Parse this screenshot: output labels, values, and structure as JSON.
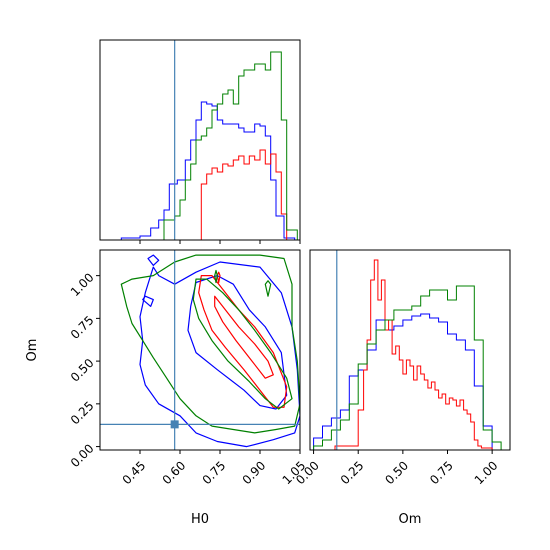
{
  "chart_data": {
    "type": "corner",
    "params": [
      "H0",
      "Om"
    ],
    "truths": {
      "H0": 0.58,
      "Om": 0.13
    },
    "truth_color": "#4682b4",
    "series": [
      {
        "color": "#0000ff"
      },
      {
        "color": "#ff0000"
      },
      {
        "color": "#008000"
      }
    ],
    "panels": [
      {
        "id": "hist-h0",
        "kind": "histogram",
        "param": "H0",
        "xlim": [
          0.3,
          1.05
        ],
        "ylim": [
          0,
          1.0
        ],
        "xticks": [
          0.45,
          0.6,
          0.75,
          0.9,
          1.05
        ],
        "xtick_labels_shown": false,
        "yticks": [],
        "truth": 0.58,
        "series": [
          {
            "color": "#0000ff",
            "edges": [
              0.38,
              0.45,
              0.49,
              0.52,
              0.54,
              0.56,
              0.59,
              0.62,
              0.64,
              0.66,
              0.68,
              0.7,
              0.72,
              0.74,
              0.76,
              0.78,
              0.8,
              0.82,
              0.84,
              0.86,
              0.88,
              0.9,
              0.92,
              0.94,
              0.96,
              0.99,
              1.03
            ],
            "counts": [
              0.01,
              0.02,
              0.06,
              0.1,
              0.15,
              0.28,
              0.3,
              0.4,
              0.5,
              0.6,
              0.69,
              0.68,
              0.67,
              0.6,
              0.58,
              0.58,
              0.58,
              0.56,
              0.54,
              0.54,
              0.58,
              0.57,
              0.52,
              0.3,
              0.12,
              0.01
            ]
          },
          {
            "color": "#ff0000",
            "edges": [
              0.68,
              0.7,
              0.72,
              0.74,
              0.76,
              0.78,
              0.8,
              0.82,
              0.84,
              0.86,
              0.88,
              0.9,
              0.92,
              0.94,
              0.96,
              0.98,
              1.0
            ],
            "counts": [
              0.28,
              0.33,
              0.36,
              0.34,
              0.38,
              0.37,
              0.4,
              0.42,
              0.38,
              0.42,
              0.4,
              0.45,
              0.38,
              0.43,
              0.34,
              0.13
            ]
          },
          {
            "color": "#008000",
            "edges": [
              0.54,
              0.58,
              0.6,
              0.62,
              0.64,
              0.66,
              0.68,
              0.7,
              0.72,
              0.74,
              0.76,
              0.78,
              0.8,
              0.82,
              0.84,
              0.86,
              0.88,
              0.9,
              0.92,
              0.94,
              0.96,
              0.98,
              1.0,
              1.04
            ],
            "counts": [
              0.1,
              0.12,
              0.2,
              0.3,
              0.38,
              0.5,
              0.52,
              0.56,
              0.65,
              0.68,
              0.73,
              0.75,
              0.68,
              0.82,
              0.85,
              0.85,
              0.88,
              0.88,
              0.85,
              0.94,
              0.94,
              0.6,
              0.05
            ]
          }
        ]
      },
      {
        "id": "contour-h0-om",
        "kind": "contour",
        "xparam": "H0",
        "yparam": "Om",
        "xlim": [
          0.3,
          1.05
        ],
        "ylim": [
          -0.02,
          1.15
        ],
        "xticks": [
          0.45,
          0.6,
          0.75,
          0.9,
          1.05
        ],
        "xtick_labels": [
          "0.45",
          "0.60",
          "0.75",
          "0.90",
          "1.05"
        ],
        "yticks": [
          0.0,
          0.25,
          0.5,
          0.75,
          1.0
        ],
        "ytick_labels": [
          "0.00",
          "0.25",
          "0.50",
          "0.75",
          "1.00"
        ],
        "xlabel": "H0",
        "ylabel": "Om",
        "truth": [
          0.58,
          0.13
        ],
        "contours": [
          {
            "color": "#0000ff",
            "points": [
              [
                0.5,
                1.05
              ],
              [
                0.52,
                1.0
              ],
              [
                0.58,
                0.95
              ],
              [
                0.66,
                1.02
              ],
              [
                0.75,
                1.08
              ],
              [
                0.9,
                1.05
              ],
              [
                0.98,
                0.9
              ],
              [
                1.02,
                0.7
              ],
              [
                1.04,
                0.45
              ],
              [
                1.05,
                0.18
              ],
              [
                1.03,
                0.08
              ],
              [
                0.95,
                0.04
              ],
              [
                0.85,
                0.0
              ],
              [
                0.74,
                0.03
              ],
              [
                0.66,
                0.08
              ],
              [
                0.6,
                0.18
              ],
              [
                0.52,
                0.25
              ],
              [
                0.47,
                0.36
              ],
              [
                0.45,
                0.48
              ],
              [
                0.46,
                0.62
              ],
              [
                0.45,
                0.76
              ],
              [
                0.47,
                0.9
              ],
              [
                0.5,
                1.05
              ]
            ]
          },
          {
            "color": "#0000ff",
            "points": [
              [
                0.66,
                0.96
              ],
              [
                0.74,
                1.0
              ],
              [
                0.8,
                0.95
              ],
              [
                0.86,
                0.8
              ],
              [
                0.92,
                0.7
              ],
              [
                0.98,
                0.55
              ],
              [
                1.0,
                0.3
              ],
              [
                0.96,
                0.22
              ],
              [
                0.9,
                0.24
              ],
              [
                0.84,
                0.33
              ],
              [
                0.74,
                0.45
              ],
              [
                0.66,
                0.55
              ],
              [
                0.63,
                0.68
              ],
              [
                0.64,
                0.82
              ],
              [
                0.66,
                0.96
              ]
            ]
          },
          {
            "color": "#0000ff",
            "points": [
              [
                0.48,
                1.1
              ],
              [
                0.5,
                1.06
              ],
              [
                0.52,
                1.09
              ],
              [
                0.5,
                1.12
              ],
              [
                0.48,
                1.1
              ]
            ]
          },
          {
            "color": "#0000ff",
            "points": [
              [
                0.46,
                0.86
              ],
              [
                0.49,
                0.82
              ],
              [
                0.5,
                0.86
              ],
              [
                0.47,
                0.88
              ],
              [
                0.46,
                0.86
              ]
            ]
          },
          {
            "color": "#ff0000",
            "points": [
              [
                0.68,
                1.0
              ],
              [
                0.72,
                1.0
              ],
              [
                0.76,
                0.92
              ],
              [
                0.82,
                0.8
              ],
              [
                0.88,
                0.7
              ],
              [
                0.95,
                0.55
              ],
              [
                1.0,
                0.35
              ],
              [
                0.99,
                0.23
              ],
              [
                0.95,
                0.23
              ],
              [
                0.9,
                0.33
              ],
              [
                0.84,
                0.45
              ],
              [
                0.77,
                0.58
              ],
              [
                0.72,
                0.68
              ],
              [
                0.69,
                0.8
              ],
              [
                0.67,
                0.9
              ],
              [
                0.68,
                1.0
              ]
            ]
          },
          {
            "color": "#ff0000",
            "points": [
              [
                0.73,
                0.88
              ],
              [
                0.76,
                0.82
              ],
              [
                0.82,
                0.7
              ],
              [
                0.88,
                0.6
              ],
              [
                0.93,
                0.5
              ],
              [
                0.95,
                0.42
              ],
              [
                0.92,
                0.4
              ],
              [
                0.87,
                0.5
              ],
              [
                0.81,
                0.62
              ],
              [
                0.76,
                0.73
              ],
              [
                0.73,
                0.82
              ],
              [
                0.73,
                0.88
              ]
            ]
          },
          {
            "color": "#ff0000",
            "points": [
              [
                0.74,
                1.0
              ],
              [
                0.745,
                0.96
              ],
              [
                0.75,
                1.0
              ],
              [
                0.745,
                1.02
              ],
              [
                0.74,
                1.0
              ]
            ]
          },
          {
            "color": "#008000",
            "points": [
              [
                0.58,
                1.08
              ],
              [
                0.66,
                1.12
              ],
              [
                0.76,
                1.12
              ],
              [
                0.9,
                1.12
              ],
              [
                0.99,
                1.1
              ],
              [
                1.02,
                0.95
              ],
              [
                1.02,
                0.7
              ],
              [
                1.04,
                0.5
              ],
              [
                1.05,
                0.25
              ],
              [
                1.03,
                0.12
              ],
              [
                0.96,
                0.1
              ],
              [
                0.88,
                0.08
              ],
              [
                0.8,
                0.1
              ],
              [
                0.72,
                0.12
              ],
              [
                0.66,
                0.18
              ],
              [
                0.6,
                0.28
              ],
              [
                0.55,
                0.4
              ],
              [
                0.5,
                0.52
              ],
              [
                0.46,
                0.62
              ],
              [
                0.42,
                0.72
              ],
              [
                0.4,
                0.82
              ],
              [
                0.38,
                0.95
              ],
              [
                0.42,
                0.98
              ],
              [
                0.5,
                1.0
              ],
              [
                0.58,
                1.08
              ]
            ]
          },
          {
            "color": "#008000",
            "points": [
              [
                0.66,
                0.98
              ],
              [
                0.7,
                0.98
              ],
              [
                0.76,
                0.9
              ],
              [
                0.82,
                0.8
              ],
              [
                0.88,
                0.68
              ],
              [
                0.94,
                0.55
              ],
              [
                1.0,
                0.4
              ],
              [
                1.02,
                0.28
              ],
              [
                0.97,
                0.22
              ],
              [
                0.92,
                0.28
              ],
              [
                0.86,
                0.38
              ],
              [
                0.78,
                0.5
              ],
              [
                0.72,
                0.62
              ],
              [
                0.67,
                0.75
              ],
              [
                0.65,
                0.86
              ],
              [
                0.66,
                0.98
              ]
            ]
          },
          {
            "color": "#008000",
            "points": [
              [
                0.92,
                0.95
              ],
              [
                0.93,
                0.88
              ],
              [
                0.94,
                0.95
              ],
              [
                0.93,
                0.97
              ],
              [
                0.92,
                0.95
              ]
            ]
          },
          {
            "color": "#008000",
            "points": [
              [
                0.73,
                1.0
              ],
              [
                0.735,
                0.96
              ],
              [
                0.74,
                1.0
              ],
              [
                0.735,
                1.03
              ],
              [
                0.73,
                1.0
              ]
            ]
          }
        ]
      },
      {
        "id": "hist-om",
        "kind": "histogram",
        "param": "Om",
        "xlim": [
          -0.02,
          1.1
        ],
        "ylim": [
          0,
          1.0
        ],
        "xticks": [
          0.0,
          0.25,
          0.5,
          0.75,
          1.0
        ],
        "xtick_labels": [
          "0.00",
          "0.25",
          "0.50",
          "0.75",
          "1.00"
        ],
        "yticks": [],
        "xlabel": "Om",
        "truth": 0.13,
        "series": [
          {
            "color": "#0000ff",
            "edges": [
              0.0,
              0.05,
              0.1,
              0.15,
              0.2,
              0.25,
              0.3,
              0.35,
              0.4,
              0.45,
              0.5,
              0.55,
              0.6,
              0.65,
              0.7,
              0.75,
              0.8,
              0.85,
              0.9,
              0.95,
              1.0
            ],
            "counts": [
              0.06,
              0.12,
              0.16,
              0.2,
              0.37,
              0.4,
              0.5,
              0.65,
              0.6,
              0.62,
              0.65,
              0.67,
              0.68,
              0.66,
              0.64,
              0.58,
              0.55,
              0.5,
              0.32,
              0.12
            ]
          },
          {
            "color": "#ff0000",
            "edges": [
              0.12,
              0.25,
              0.28,
              0.3,
              0.32,
              0.34,
              0.36,
              0.38,
              0.4,
              0.42,
              0.44,
              0.46,
              0.48,
              0.5,
              0.52,
              0.54,
              0.56,
              0.58,
              0.6,
              0.62,
              0.64,
              0.66,
              0.68,
              0.7,
              0.72,
              0.74,
              0.76,
              0.78,
              0.8,
              0.82,
              0.84,
              0.86,
              0.88,
              0.9,
              0.92,
              0.94,
              0.96,
              0.98,
              1.0
            ],
            "counts": [
              0.02,
              0.2,
              0.4,
              0.55,
              0.85,
              0.95,
              0.75,
              0.85,
              0.6,
              0.65,
              0.48,
              0.52,
              0.45,
              0.38,
              0.45,
              0.42,
              0.35,
              0.42,
              0.38,
              0.35,
              0.31,
              0.34,
              0.3,
              0.26,
              0.28,
              0.23,
              0.26,
              0.25,
              0.22,
              0.25,
              0.2,
              0.18,
              0.14,
              0.05,
              0.02,
              0.01,
              0.01,
              0.01
            ]
          },
          {
            "color": "#008000",
            "edges": [
              0.0,
              0.05,
              0.1,
              0.15,
              0.2,
              0.25,
              0.3,
              0.35,
              0.4,
              0.45,
              0.5,
              0.55,
              0.6,
              0.65,
              0.7,
              0.75,
              0.8,
              0.85,
              0.9,
              0.95,
              1.0,
              1.05
            ],
            "counts": [
              0.02,
              0.05,
              0.1,
              0.15,
              0.23,
              0.43,
              0.53,
              0.6,
              0.65,
              0.7,
              0.7,
              0.72,
              0.77,
              0.8,
              0.8,
              0.75,
              0.82,
              0.82,
              0.55,
              0.1,
              0.04
            ]
          }
        ]
      }
    ]
  }
}
